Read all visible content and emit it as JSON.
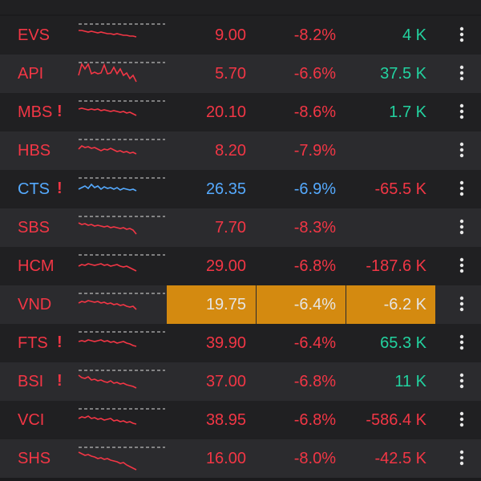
{
  "colors": {
    "down": "#f23645",
    "up": "#22d3a0",
    "ref": "#55aaff",
    "dim": "#e5e5e5",
    "flash": "#d48a10"
  },
  "rows": [
    {
      "ticker": "EVS",
      "alert": false,
      "price": "9.00",
      "change": "-8.2%",
      "volume": "4 K",
      "ticker_color": "down",
      "price_color": "down",
      "vol_color": "up",
      "spark_color": "down",
      "flash": false,
      "spark": [
        8,
        8,
        9,
        10,
        9,
        10,
        11,
        10,
        11,
        12,
        12,
        13,
        12,
        13,
        14,
        14,
        15,
        15,
        16
      ]
    },
    {
      "ticker": "API",
      "alert": false,
      "price": "5.70",
      "change": "-6.6%",
      "volume": "37.5 K",
      "ticker_color": "down",
      "price_color": "down",
      "vol_color": "up",
      "spark_color": "down",
      "flash": false,
      "spark": [
        16,
        2,
        8,
        2,
        14,
        12,
        14,
        13,
        3,
        14,
        13,
        6,
        14,
        8,
        16,
        13,
        20,
        16,
        24
      ]
    },
    {
      "ticker": "MBS",
      "alert": true,
      "price": "20.10",
      "change": "-8.6%",
      "volume": "1.7 K",
      "ticker_color": "down",
      "price_color": "down",
      "vol_color": "up",
      "spark_color": "down",
      "flash": false,
      "spark": [
        10,
        9,
        10,
        11,
        10,
        11,
        10,
        12,
        11,
        12,
        13,
        12,
        13,
        14,
        13,
        15,
        14,
        16,
        18
      ]
    },
    {
      "ticker": "HBS",
      "alert": false,
      "price": "8.20",
      "change": "-7.9%",
      "volume": "",
      "ticker_color": "down",
      "price_color": "down",
      "vol_color": "up",
      "spark_color": "down",
      "flash": false,
      "spark": [
        12,
        8,
        10,
        9,
        11,
        10,
        12,
        14,
        12,
        13,
        11,
        13,
        15,
        14,
        16,
        15,
        17,
        16,
        18
      ]
    },
    {
      "ticker": "CTS",
      "alert": true,
      "price": "26.35",
      "change": "-6.9%",
      "volume": "-65.5 K",
      "ticker_color": "ref",
      "price_color": "ref",
      "vol_color": "down",
      "spark_color": "ref",
      "flash": false,
      "spark": [
        14,
        12,
        10,
        13,
        8,
        12,
        10,
        14,
        11,
        13,
        12,
        14,
        12,
        15,
        13,
        14,
        15,
        14,
        16
      ]
    },
    {
      "ticker": "SBS",
      "alert": false,
      "price": "7.70",
      "change": "-8.3%",
      "volume": "",
      "ticker_color": "down",
      "price_color": "down",
      "vol_color": "up",
      "spark_color": "down",
      "flash": false,
      "spark": [
        8,
        10,
        9,
        11,
        10,
        12,
        11,
        12,
        13,
        12,
        14,
        13,
        14,
        15,
        14,
        16,
        15,
        17,
        22
      ]
    },
    {
      "ticker": "HCM",
      "alert": false,
      "price": "29.00",
      "change": "-6.8%",
      "volume": "-187.6 K",
      "ticker_color": "down",
      "price_color": "down",
      "vol_color": "down",
      "spark_color": "down",
      "flash": false,
      "spark": [
        14,
        12,
        13,
        11,
        12,
        13,
        12,
        11,
        13,
        12,
        14,
        13,
        12,
        14,
        15,
        14,
        16,
        18,
        20
      ]
    },
    {
      "ticker": "VND",
      "alert": false,
      "price": "19.75",
      "change": "-6.4%",
      "volume": "-6.2 K",
      "ticker_color": "down",
      "price_color": "dim",
      "vol_color": "dim",
      "spark_color": "down",
      "flash": true,
      "spark": [
        12,
        10,
        11,
        9,
        10,
        11,
        10,
        12,
        11,
        13,
        12,
        14,
        13,
        15,
        14,
        16,
        17,
        16,
        20
      ]
    },
    {
      "ticker": "FTS",
      "alert": true,
      "price": "39.90",
      "change": "-6.4%",
      "volume": "65.3 K",
      "ticker_color": "down",
      "price_color": "down",
      "vol_color": "up",
      "spark_color": "down",
      "flash": false,
      "spark": [
        12,
        11,
        12,
        10,
        11,
        12,
        11,
        10,
        12,
        11,
        13,
        12,
        14,
        13,
        12,
        14,
        15,
        17,
        18
      ]
    },
    {
      "ticker": "BSI",
      "alert": true,
      "price": "37.00",
      "change": "-6.8%",
      "volume": "11 K",
      "ticker_color": "down",
      "price_color": "down",
      "vol_color": "up",
      "spark_color": "down",
      "flash": false,
      "spark": [
        6,
        9,
        10,
        8,
        12,
        11,
        13,
        12,
        14,
        15,
        13,
        16,
        15,
        17,
        16,
        18,
        19,
        20,
        22
      ]
    },
    {
      "ticker": "VCI",
      "alert": false,
      "price": "38.95",
      "change": "-6.8%",
      "volume": "-586.4 K",
      "ticker_color": "down",
      "price_color": "down",
      "vol_color": "down",
      "spark_color": "down",
      "flash": false,
      "spark": [
        12,
        10,
        11,
        9,
        12,
        11,
        13,
        12,
        14,
        13,
        12,
        15,
        14,
        16,
        15,
        17,
        16,
        18,
        19
      ]
    },
    {
      "ticker": "SHS",
      "alert": false,
      "price": "16.00",
      "change": "-8.0%",
      "volume": "-42.5 K",
      "ticker_color": "down",
      "price_color": "down",
      "vol_color": "down",
      "spark_color": "down",
      "flash": false,
      "spark": [
        6,
        8,
        10,
        9,
        11,
        12,
        14,
        13,
        15,
        14,
        16,
        17,
        18,
        20,
        19,
        22,
        24,
        26,
        28
      ]
    }
  ]
}
